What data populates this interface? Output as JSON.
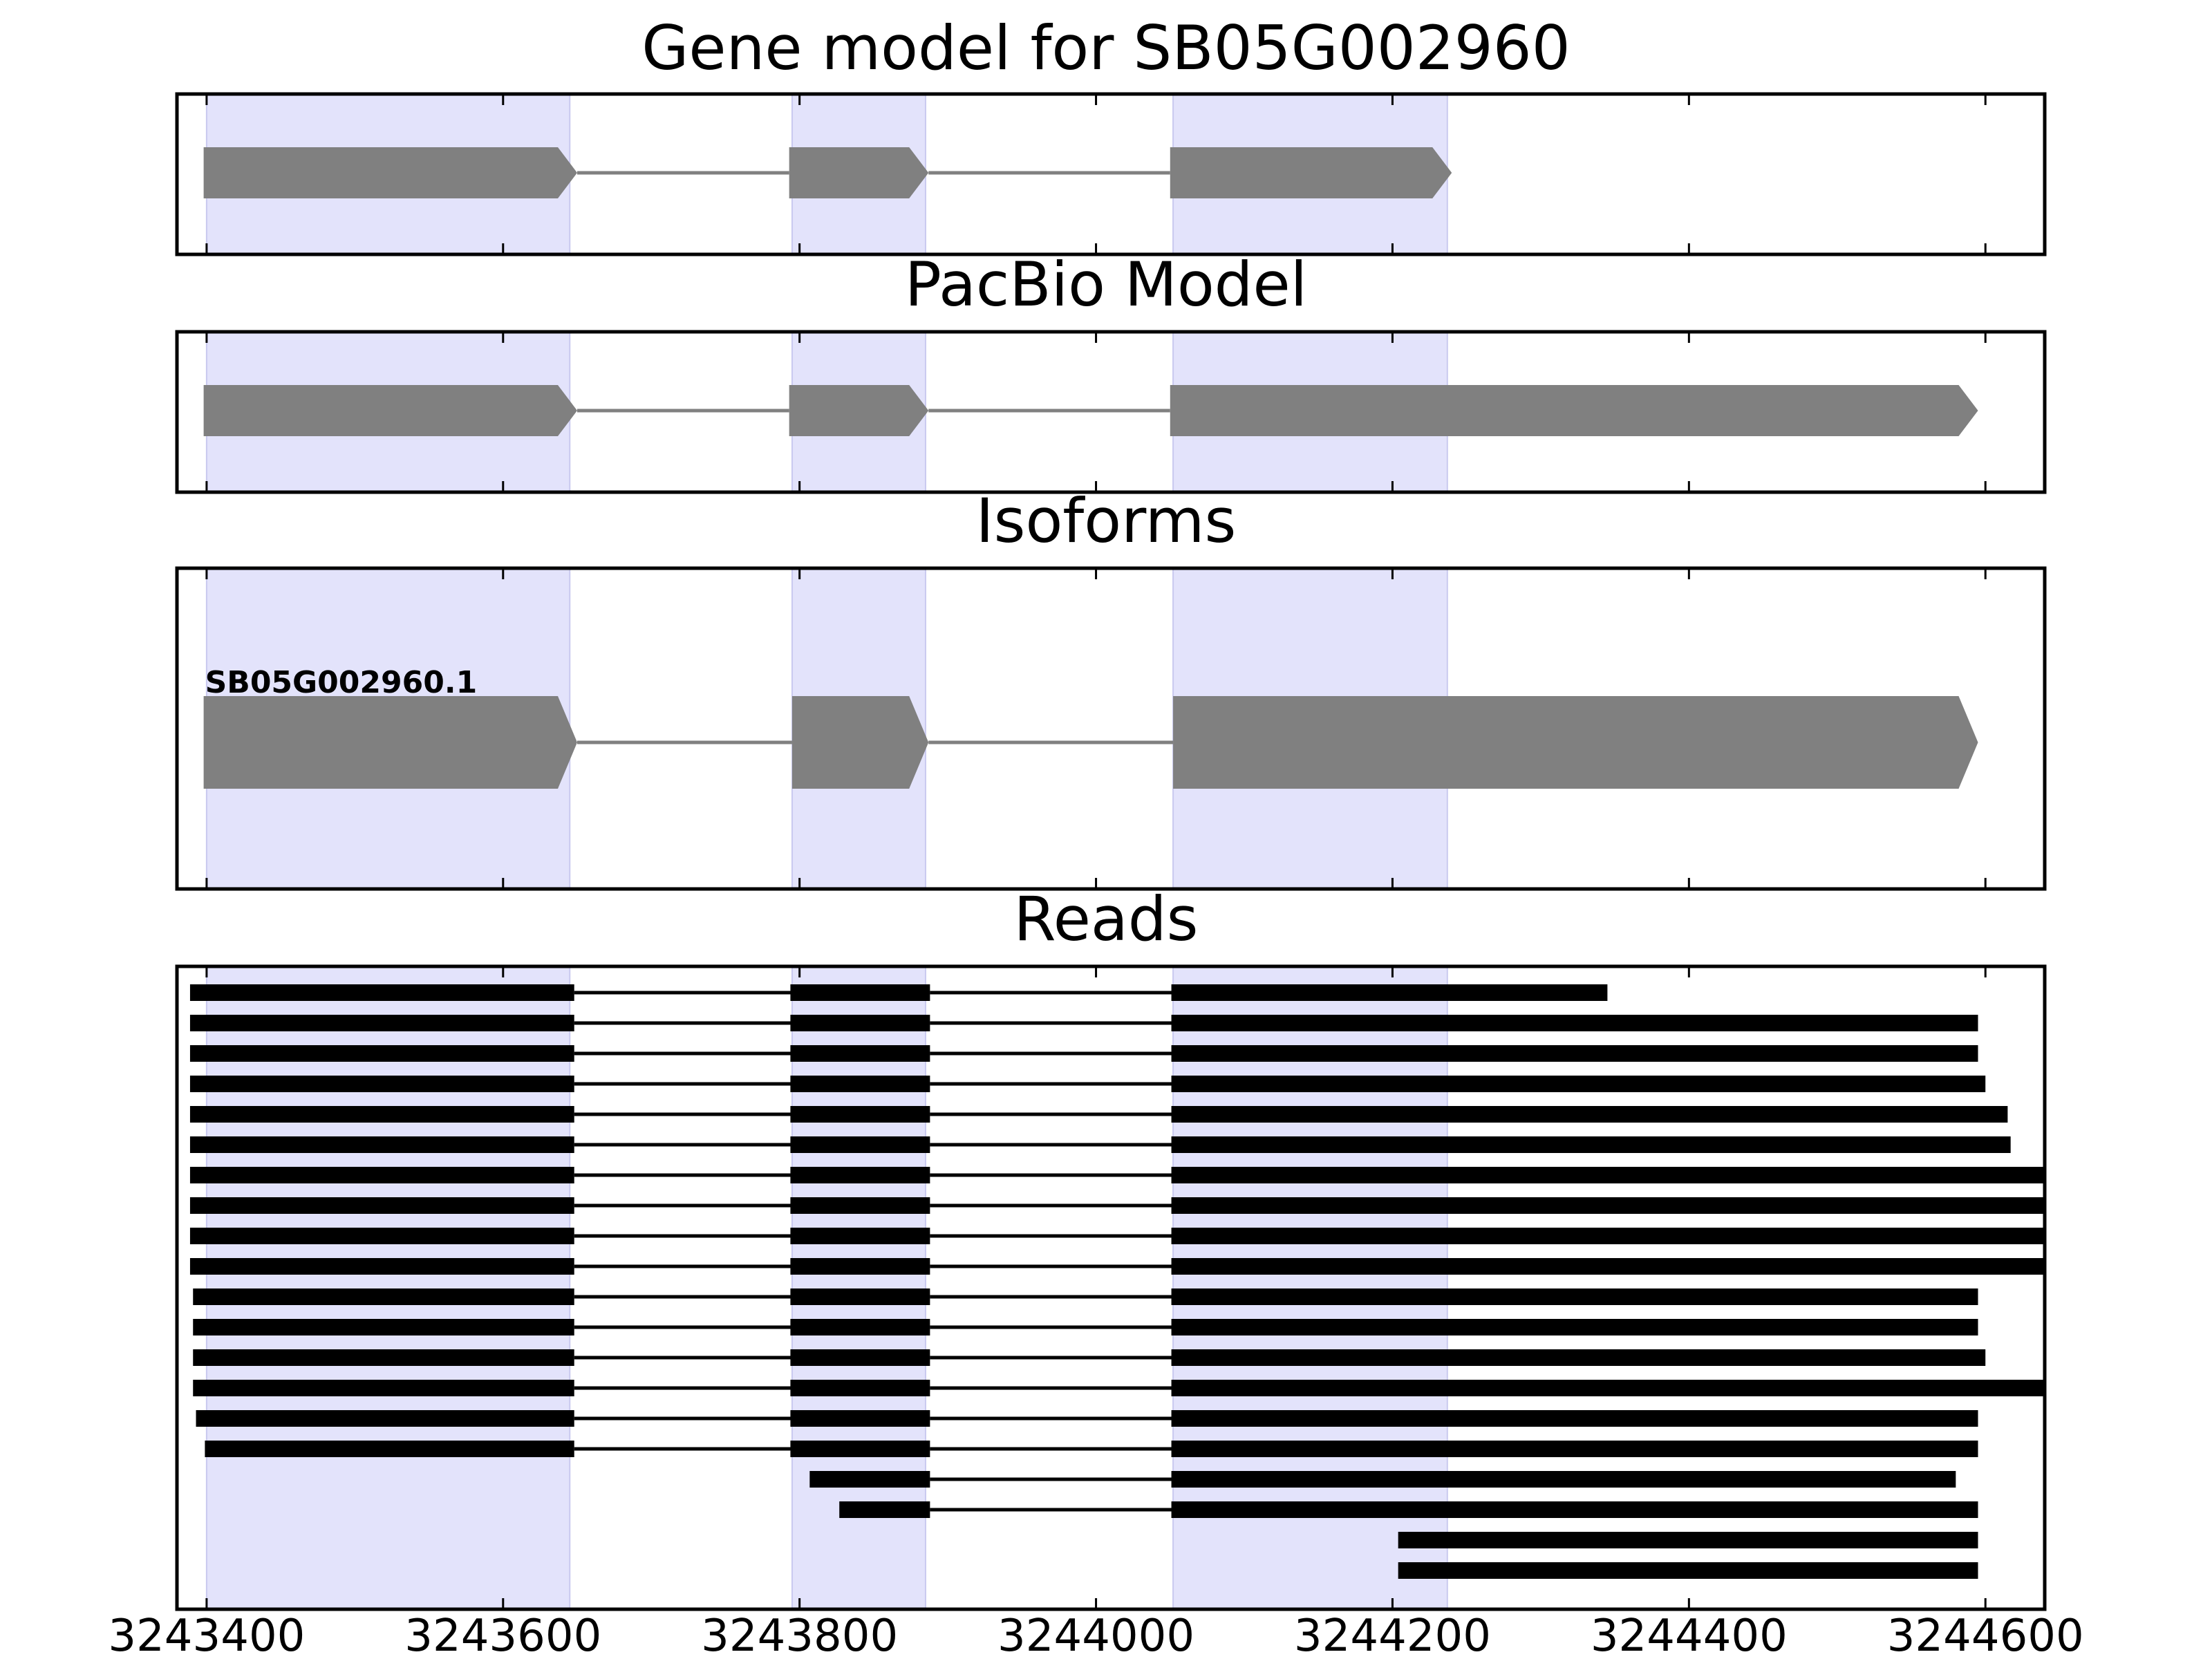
{
  "chart_data": {
    "type": "gene-track",
    "xlim": [
      3243380,
      3244640
    ],
    "xticks": [
      3243400,
      3243600,
      3243800,
      3244000,
      3244200,
      3244400,
      3244600
    ],
    "tick_labels": [
      "3243400",
      "3243600",
      "3243800",
      "3244000",
      "3244200",
      "3244400",
      "3244600"
    ],
    "highlight_regions": [
      [
        3243400,
        3243645
      ],
      [
        3243795,
        3243885
      ],
      [
        3244052,
        3244237
      ]
    ],
    "colors": {
      "highlight": "#e3e3fb",
      "exon": "#808080",
      "intron": "#808080",
      "read": "#000000",
      "frame": "#000000"
    },
    "panels": [
      {
        "title": "Gene model for SB05G002960",
        "exons": [
          [
            3243398,
            3243650
          ],
          [
            3243793,
            3243887
          ],
          [
            3244050,
            3244240
          ]
        ]
      },
      {
        "title": "PacBio Model",
        "exons": [
          [
            3243398,
            3243650
          ],
          [
            3243793,
            3243887
          ],
          [
            3244050,
            3244595
          ]
        ]
      },
      {
        "title": "Isoforms",
        "isoform_label": "SB05G002960.1",
        "exons": [
          [
            3243398,
            3243650
          ],
          [
            3243795,
            3243887
          ],
          [
            3244052,
            3244595
          ]
        ]
      },
      {
        "title": "Reads",
        "reads": [
          [
            [
              3243390,
              3243648
            ],
            [
              3243795,
              3243888
            ],
            [
              3244052,
              3244345
            ]
          ],
          [
            [
              3243390,
              3243648
            ],
            [
              3243795,
              3243888
            ],
            [
              3244052,
              3244595
            ]
          ],
          [
            [
              3243390,
              3243648
            ],
            [
              3243795,
              3243888
            ],
            [
              3244052,
              3244595
            ]
          ],
          [
            [
              3243390,
              3243648
            ],
            [
              3243795,
              3243888
            ],
            [
              3244052,
              3244600
            ]
          ],
          [
            [
              3243390,
              3243648
            ],
            [
              3243795,
              3243888
            ],
            [
              3244052,
              3244615
            ]
          ],
          [
            [
              3243390,
              3243648
            ],
            [
              3243795,
              3243888
            ],
            [
              3244052,
              3244617
            ]
          ],
          [
            [
              3243390,
              3243648
            ],
            [
              3243795,
              3243888
            ],
            [
              3244052,
              3244640
            ]
          ],
          [
            [
              3243390,
              3243648
            ],
            [
              3243795,
              3243888
            ],
            [
              3244052,
              3244640
            ]
          ],
          [
            [
              3243390,
              3243648
            ],
            [
              3243795,
              3243888
            ],
            [
              3244052,
              3244640
            ]
          ],
          [
            [
              3243390,
              3243648
            ],
            [
              3243795,
              3243888
            ],
            [
              3244052,
              3244640
            ]
          ],
          [
            [
              3243392,
              3243648
            ],
            [
              3243795,
              3243888
            ],
            [
              3244052,
              3244595
            ]
          ],
          [
            [
              3243392,
              3243648
            ],
            [
              3243795,
              3243888
            ],
            [
              3244052,
              3244595
            ]
          ],
          [
            [
              3243392,
              3243648
            ],
            [
              3243795,
              3243888
            ],
            [
              3244052,
              3244600
            ]
          ],
          [
            [
              3243392,
              3243648
            ],
            [
              3243795,
              3243888
            ],
            [
              3244052,
              3244640
            ]
          ],
          [
            [
              3243394,
              3243648
            ],
            [
              3243795,
              3243888
            ],
            [
              3244052,
              3244595
            ]
          ],
          [
            [
              3243400,
              3243648
            ],
            [
              3243795,
              3243888
            ],
            [
              3244052,
              3244595
            ]
          ],
          [
            [
              3243808,
              3243888
            ],
            [
              3244052,
              3244580
            ]
          ],
          [
            [
              3243828,
              3243888
            ],
            [
              3244052,
              3244595
            ]
          ],
          [
            [
              3244205,
              3244595
            ]
          ],
          [
            [
              3244205,
              3244595
            ]
          ]
        ]
      }
    ]
  }
}
